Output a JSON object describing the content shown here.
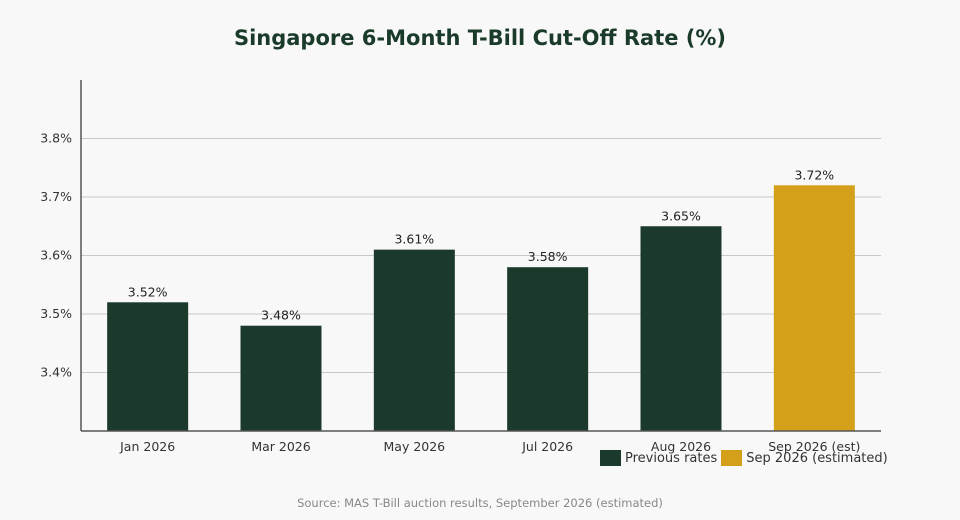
{
  "chart_data": {
    "type": "bar",
    "title": "Singapore 6-Month T-Bill Cut-Off Rate (%)",
    "categories": [
      "Jan 2026",
      "Mar 2026",
      "May 2026",
      "Jul 2026",
      "Aug 2026",
      "Sep 2026 (est)"
    ],
    "values": [
      3.52,
      3.48,
      3.61,
      3.58,
      3.65,
      3.72
    ],
    "value_labels": [
      "3.52%",
      "3.48%",
      "3.61%",
      "3.58%",
      "3.65%",
      "3.72%"
    ],
    "bar_kinds": [
      "previous",
      "previous",
      "previous",
      "previous",
      "previous",
      "estimated"
    ],
    "ylim": [
      3.3,
      3.9
    ],
    "yticks": [
      3.4,
      3.5,
      3.6,
      3.7,
      3.8
    ],
    "ytick_labels": [
      "3.4%",
      "3.5%",
      "3.6%",
      "3.7%",
      "3.8%"
    ],
    "grid": true,
    "legend_position": "bottom-right",
    "legend": [
      {
        "label": "Previous rates",
        "kind": "previous"
      },
      {
        "label": "Sep 2026 (estimated)",
        "kind": "estimated"
      }
    ],
    "colors": {
      "previous": "#1b3a2b",
      "estimated": "#d4a01a",
      "grid": "#c8c8c8",
      "axis": "#555555"
    },
    "source": "Source: MAS T-Bill auction results, September 2026 (estimated)"
  }
}
